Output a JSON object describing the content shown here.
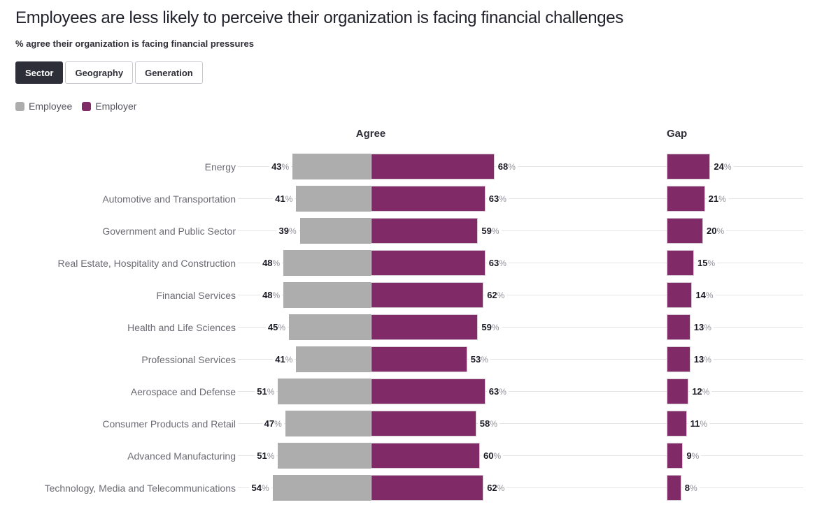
{
  "title": "Employees are less likely to perceive their organization is facing financial challenges",
  "subtitle": "% agree their organization is facing financial pressures",
  "tabs": {
    "items": [
      "Sector",
      "Geography",
      "Generation"
    ],
    "selected": "Sector"
  },
  "legend": [
    {
      "label": "Employee",
      "color": "#ADADAD"
    },
    {
      "label": "Employer",
      "color": "#802A68"
    }
  ],
  "colors": {
    "employee": "#ADADAD",
    "employer": "#802A68",
    "tab_active_bg": "#2E2E38",
    "gridline": "#E4E4E4"
  },
  "chart_data": {
    "type": "bar",
    "orientation": "horizontal",
    "unit": "%",
    "panel_headers": [
      "Agree",
      "Gap"
    ],
    "legend_position": "top-left",
    "value_labels_shown": true,
    "axes_shown": false,
    "categories": [
      "Energy",
      "Automotive and Transportation",
      "Government and Public Sector",
      "Real Estate, Hospitality and Construction",
      "Financial Services",
      "Health and Life Sciences",
      "Professional Services",
      "Aerospace and Defense",
      "Consumer Products and Retail",
      "Advanced Manufacturing",
      "Technology, Media and Telecommunications"
    ],
    "series": [
      {
        "name": "Employee",
        "color": "#ADADAD",
        "values": [
          43,
          41,
          39,
          48,
          48,
          45,
          41,
          51,
          47,
          51,
          54
        ]
      },
      {
        "name": "Employer",
        "color": "#802A68",
        "values": [
          68,
          63,
          59,
          63,
          62,
          59,
          53,
          63,
          58,
          60,
          62
        ]
      }
    ],
    "gap_values": [
      24,
      21,
      20,
      15,
      14,
      13,
      13,
      12,
      11,
      9,
      8
    ]
  }
}
